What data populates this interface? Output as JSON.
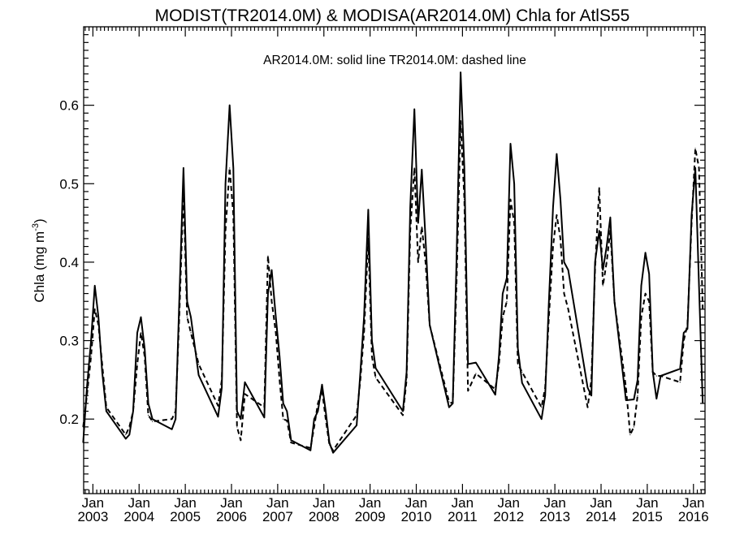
{
  "chart_data": {
    "type": "line",
    "title": "MODIST(TR2014.0M) & MODISA(AR2014.0M)  Chla for AtlS55",
    "annotation": "AR2014.0M: solid line   TR2014.0M: dashed line",
    "ylabel": "Chla (mg m",
    "ylabel_superscript": "-3",
    "ylabel_close": ")",
    "xlim": [
      2002.8,
      2016.25
    ],
    "ylim": [
      0.105,
      0.7
    ],
    "x_tick_top_label": "Jan",
    "x_ticks": [
      {
        "value": 2003,
        "year": "2003"
      },
      {
        "value": 2004,
        "year": "2004"
      },
      {
        "value": 2005,
        "year": "2005"
      },
      {
        "value": 2006,
        "year": "2006"
      },
      {
        "value": 2007,
        "year": "2007"
      },
      {
        "value": 2008,
        "year": "2008"
      },
      {
        "value": 2009,
        "year": "2009"
      },
      {
        "value": 2010,
        "year": "2010"
      },
      {
        "value": 2011,
        "year": "2011"
      },
      {
        "value": 2012,
        "year": "2012"
      },
      {
        "value": 2013,
        "year": "2013"
      },
      {
        "value": 2014,
        "year": "2014"
      },
      {
        "value": 2015,
        "year": "2015"
      },
      {
        "value": 2016,
        "year": "2016"
      }
    ],
    "y_ticks": [
      {
        "value": 0.2,
        "label": "0.2"
      },
      {
        "value": 0.3,
        "label": "0.3"
      },
      {
        "value": 0.4,
        "label": "0.4"
      },
      {
        "value": 0.5,
        "label": "0.5"
      },
      {
        "value": 0.6,
        "label": "0.6"
      }
    ],
    "series": [
      {
        "name": "AR2014.0M",
        "style": "solid",
        "color": "#000000",
        "points": [
          [
            2002.79,
            0.17
          ],
          [
            2002.87,
            0.24
          ],
          [
            2002.96,
            0.3
          ],
          [
            2003.04,
            0.37
          ],
          [
            2003.12,
            0.33
          ],
          [
            2003.2,
            0.26
          ],
          [
            2003.29,
            0.21
          ],
          [
            2003.71,
            0.175
          ],
          [
            2003.79,
            0.18
          ],
          [
            2003.87,
            0.21
          ],
          [
            2003.96,
            0.31
          ],
          [
            2004.04,
            0.33
          ],
          [
            2004.12,
            0.29
          ],
          [
            2004.2,
            0.22
          ],
          [
            2004.29,
            0.2
          ],
          [
            2004.71,
            0.187
          ],
          [
            2004.79,
            0.2
          ],
          [
            2004.87,
            0.35
          ],
          [
            2004.96,
            0.52
          ],
          [
            2005.04,
            0.35
          ],
          [
            2005.12,
            0.33
          ],
          [
            2005.29,
            0.256
          ],
          [
            2005.71,
            0.203
          ],
          [
            2005.79,
            0.24
          ],
          [
            2005.87,
            0.5
          ],
          [
            2005.96,
            0.6
          ],
          [
            2006.04,
            0.52
          ],
          [
            2006.12,
            0.21
          ],
          [
            2006.2,
            0.2
          ],
          [
            2006.29,
            0.247
          ],
          [
            2006.71,
            0.202
          ],
          [
            2006.79,
            0.36
          ],
          [
            2006.87,
            0.39
          ],
          [
            2006.96,
            0.33
          ],
          [
            2007.04,
            0.28
          ],
          [
            2007.12,
            0.22
          ],
          [
            2007.2,
            0.21
          ],
          [
            2007.29,
            0.173
          ],
          [
            2007.71,
            0.16
          ],
          [
            2007.79,
            0.2
          ],
          [
            2007.87,
            0.21
          ],
          [
            2007.96,
            0.244
          ],
          [
            2008.04,
            0.21
          ],
          [
            2008.12,
            0.17
          ],
          [
            2008.2,
            0.157
          ],
          [
            2008.71,
            0.192
          ],
          [
            2008.79,
            0.26
          ],
          [
            2008.87,
            0.33
          ],
          [
            2008.96,
            0.467
          ],
          [
            2009.04,
            0.3
          ],
          [
            2009.12,
            0.265
          ],
          [
            2009.71,
            0.21
          ],
          [
            2009.79,
            0.26
          ],
          [
            2009.87,
            0.47
          ],
          [
            2009.96,
            0.595
          ],
          [
            2010.04,
            0.45
          ],
          [
            2010.12,
            0.518
          ],
          [
            2010.2,
            0.43
          ],
          [
            2010.29,
            0.32
          ],
          [
            2010.71,
            0.215
          ],
          [
            2010.79,
            0.22
          ],
          [
            2010.87,
            0.4
          ],
          [
            2010.96,
            0.642
          ],
          [
            2011.04,
            0.52
          ],
          [
            2011.12,
            0.27
          ],
          [
            2011.29,
            0.272
          ],
          [
            2011.71,
            0.231
          ],
          [
            2011.79,
            0.28
          ],
          [
            2011.87,
            0.36
          ],
          [
            2011.96,
            0.38
          ],
          [
            2012.04,
            0.551
          ],
          [
            2012.12,
            0.5
          ],
          [
            2012.2,
            0.29
          ],
          [
            2012.29,
            0.246
          ],
          [
            2012.71,
            0.2
          ],
          [
            2012.79,
            0.23
          ],
          [
            2012.87,
            0.35
          ],
          [
            2012.96,
            0.47
          ],
          [
            2013.04,
            0.538
          ],
          [
            2013.12,
            0.48
          ],
          [
            2013.2,
            0.4
          ],
          [
            2013.29,
            0.39
          ],
          [
            2013.71,
            0.24
          ],
          [
            2013.79,
            0.23
          ],
          [
            2013.87,
            0.4
          ],
          [
            2013.96,
            0.44
          ],
          [
            2014.04,
            0.39
          ],
          [
            2014.12,
            0.42
          ],
          [
            2014.2,
            0.457
          ],
          [
            2014.29,
            0.35
          ],
          [
            2014.54,
            0.224
          ],
          [
            2014.71,
            0.225
          ],
          [
            2014.79,
            0.25
          ],
          [
            2014.87,
            0.37
          ],
          [
            2014.96,
            0.412
          ],
          [
            2015.04,
            0.385
          ],
          [
            2015.12,
            0.26
          ],
          [
            2015.2,
            0.226
          ],
          [
            2015.29,
            0.255
          ],
          [
            2015.71,
            0.264
          ],
          [
            2015.79,
            0.31
          ],
          [
            2015.87,
            0.315
          ],
          [
            2015.96,
            0.46
          ],
          [
            2016.04,
            0.52
          ],
          [
            2016.12,
            0.37
          ],
          [
            2016.2,
            0.22
          ]
        ]
      },
      {
        "name": "TR2014.0M",
        "style": "dashed",
        "color": "#000000",
        "points": [
          [
            2002.79,
            0.19
          ],
          [
            2002.87,
            0.23
          ],
          [
            2002.96,
            0.28
          ],
          [
            2003.04,
            0.34
          ],
          [
            2003.12,
            0.32
          ],
          [
            2003.2,
            0.27
          ],
          [
            2003.29,
            0.215
          ],
          [
            2003.71,
            0.18
          ],
          [
            2003.79,
            0.19
          ],
          [
            2003.87,
            0.21
          ],
          [
            2003.96,
            0.27
          ],
          [
            2004.04,
            0.31
          ],
          [
            2004.12,
            0.28
          ],
          [
            2004.2,
            0.205
          ],
          [
            2004.29,
            0.197
          ],
          [
            2004.71,
            0.2
          ],
          [
            2004.79,
            0.21
          ],
          [
            2004.87,
            0.33
          ],
          [
            2004.96,
            0.49
          ],
          [
            2005.04,
            0.33
          ],
          [
            2005.12,
            0.31
          ],
          [
            2005.29,
            0.27
          ],
          [
            2005.71,
            0.217
          ],
          [
            2005.79,
            0.25
          ],
          [
            2005.87,
            0.44
          ],
          [
            2005.96,
            0.52
          ],
          [
            2006.04,
            0.46
          ],
          [
            2006.12,
            0.19
          ],
          [
            2006.2,
            0.173
          ],
          [
            2006.29,
            0.232
          ],
          [
            2006.71,
            0.215
          ],
          [
            2006.79,
            0.408
          ],
          [
            2006.87,
            0.35
          ],
          [
            2006.96,
            0.31
          ],
          [
            2007.04,
            0.25
          ],
          [
            2007.12,
            0.2
          ],
          [
            2007.2,
            0.198
          ],
          [
            2007.29,
            0.17
          ],
          [
            2007.71,
            0.163
          ],
          [
            2007.79,
            0.19
          ],
          [
            2007.87,
            0.22
          ],
          [
            2007.96,
            0.237
          ],
          [
            2008.04,
            0.2
          ],
          [
            2008.12,
            0.167
          ],
          [
            2008.2,
            0.16
          ],
          [
            2008.71,
            0.205
          ],
          [
            2008.79,
            0.25
          ],
          [
            2008.87,
            0.31
          ],
          [
            2008.96,
            0.43
          ],
          [
            2009.04,
            0.28
          ],
          [
            2009.12,
            0.253
          ],
          [
            2009.71,
            0.205
          ],
          [
            2009.79,
            0.25
          ],
          [
            2009.87,
            0.44
          ],
          [
            2009.96,
            0.52
          ],
          [
            2010.04,
            0.4
          ],
          [
            2010.12,
            0.445
          ],
          [
            2010.2,
            0.4
          ],
          [
            2010.29,
            0.32
          ],
          [
            2010.71,
            0.222
          ],
          [
            2010.79,
            0.22
          ],
          [
            2010.87,
            0.37
          ],
          [
            2010.96,
            0.58
          ],
          [
            2011.04,
            0.48
          ],
          [
            2011.12,
            0.236
          ],
          [
            2011.29,
            0.258
          ],
          [
            2011.71,
            0.238
          ],
          [
            2011.79,
            0.27
          ],
          [
            2011.87,
            0.33
          ],
          [
            2011.96,
            0.35
          ],
          [
            2012.04,
            0.48
          ],
          [
            2012.12,
            0.45
          ],
          [
            2012.2,
            0.27
          ],
          [
            2012.29,
            0.26
          ],
          [
            2012.71,
            0.215
          ],
          [
            2012.79,
            0.24
          ],
          [
            2012.87,
            0.33
          ],
          [
            2012.96,
            0.42
          ],
          [
            2013.04,
            0.46
          ],
          [
            2013.12,
            0.43
          ],
          [
            2013.2,
            0.36
          ],
          [
            2013.29,
            0.34
          ],
          [
            2013.71,
            0.215
          ],
          [
            2013.79,
            0.25
          ],
          [
            2013.87,
            0.39
          ],
          [
            2013.96,
            0.495
          ],
          [
            2014.04,
            0.37
          ],
          [
            2014.12,
            0.4
          ],
          [
            2014.2,
            0.44
          ],
          [
            2014.29,
            0.35
          ],
          [
            2014.54,
            0.24
          ],
          [
            2014.63,
            0.18
          ],
          [
            2014.71,
            0.19
          ],
          [
            2014.79,
            0.23
          ],
          [
            2014.87,
            0.33
          ],
          [
            2014.96,
            0.36
          ],
          [
            2015.04,
            0.35
          ],
          [
            2015.12,
            0.26
          ],
          [
            2015.2,
            0.255
          ],
          [
            2015.29,
            0.255
          ],
          [
            2015.71,
            0.247
          ],
          [
            2015.79,
            0.3
          ],
          [
            2015.87,
            0.32
          ],
          [
            2015.96,
            0.45
          ],
          [
            2016.04,
            0.545
          ],
          [
            2016.12,
            0.52
          ],
          [
            2016.2,
            0.34
          ]
        ]
      }
    ]
  }
}
